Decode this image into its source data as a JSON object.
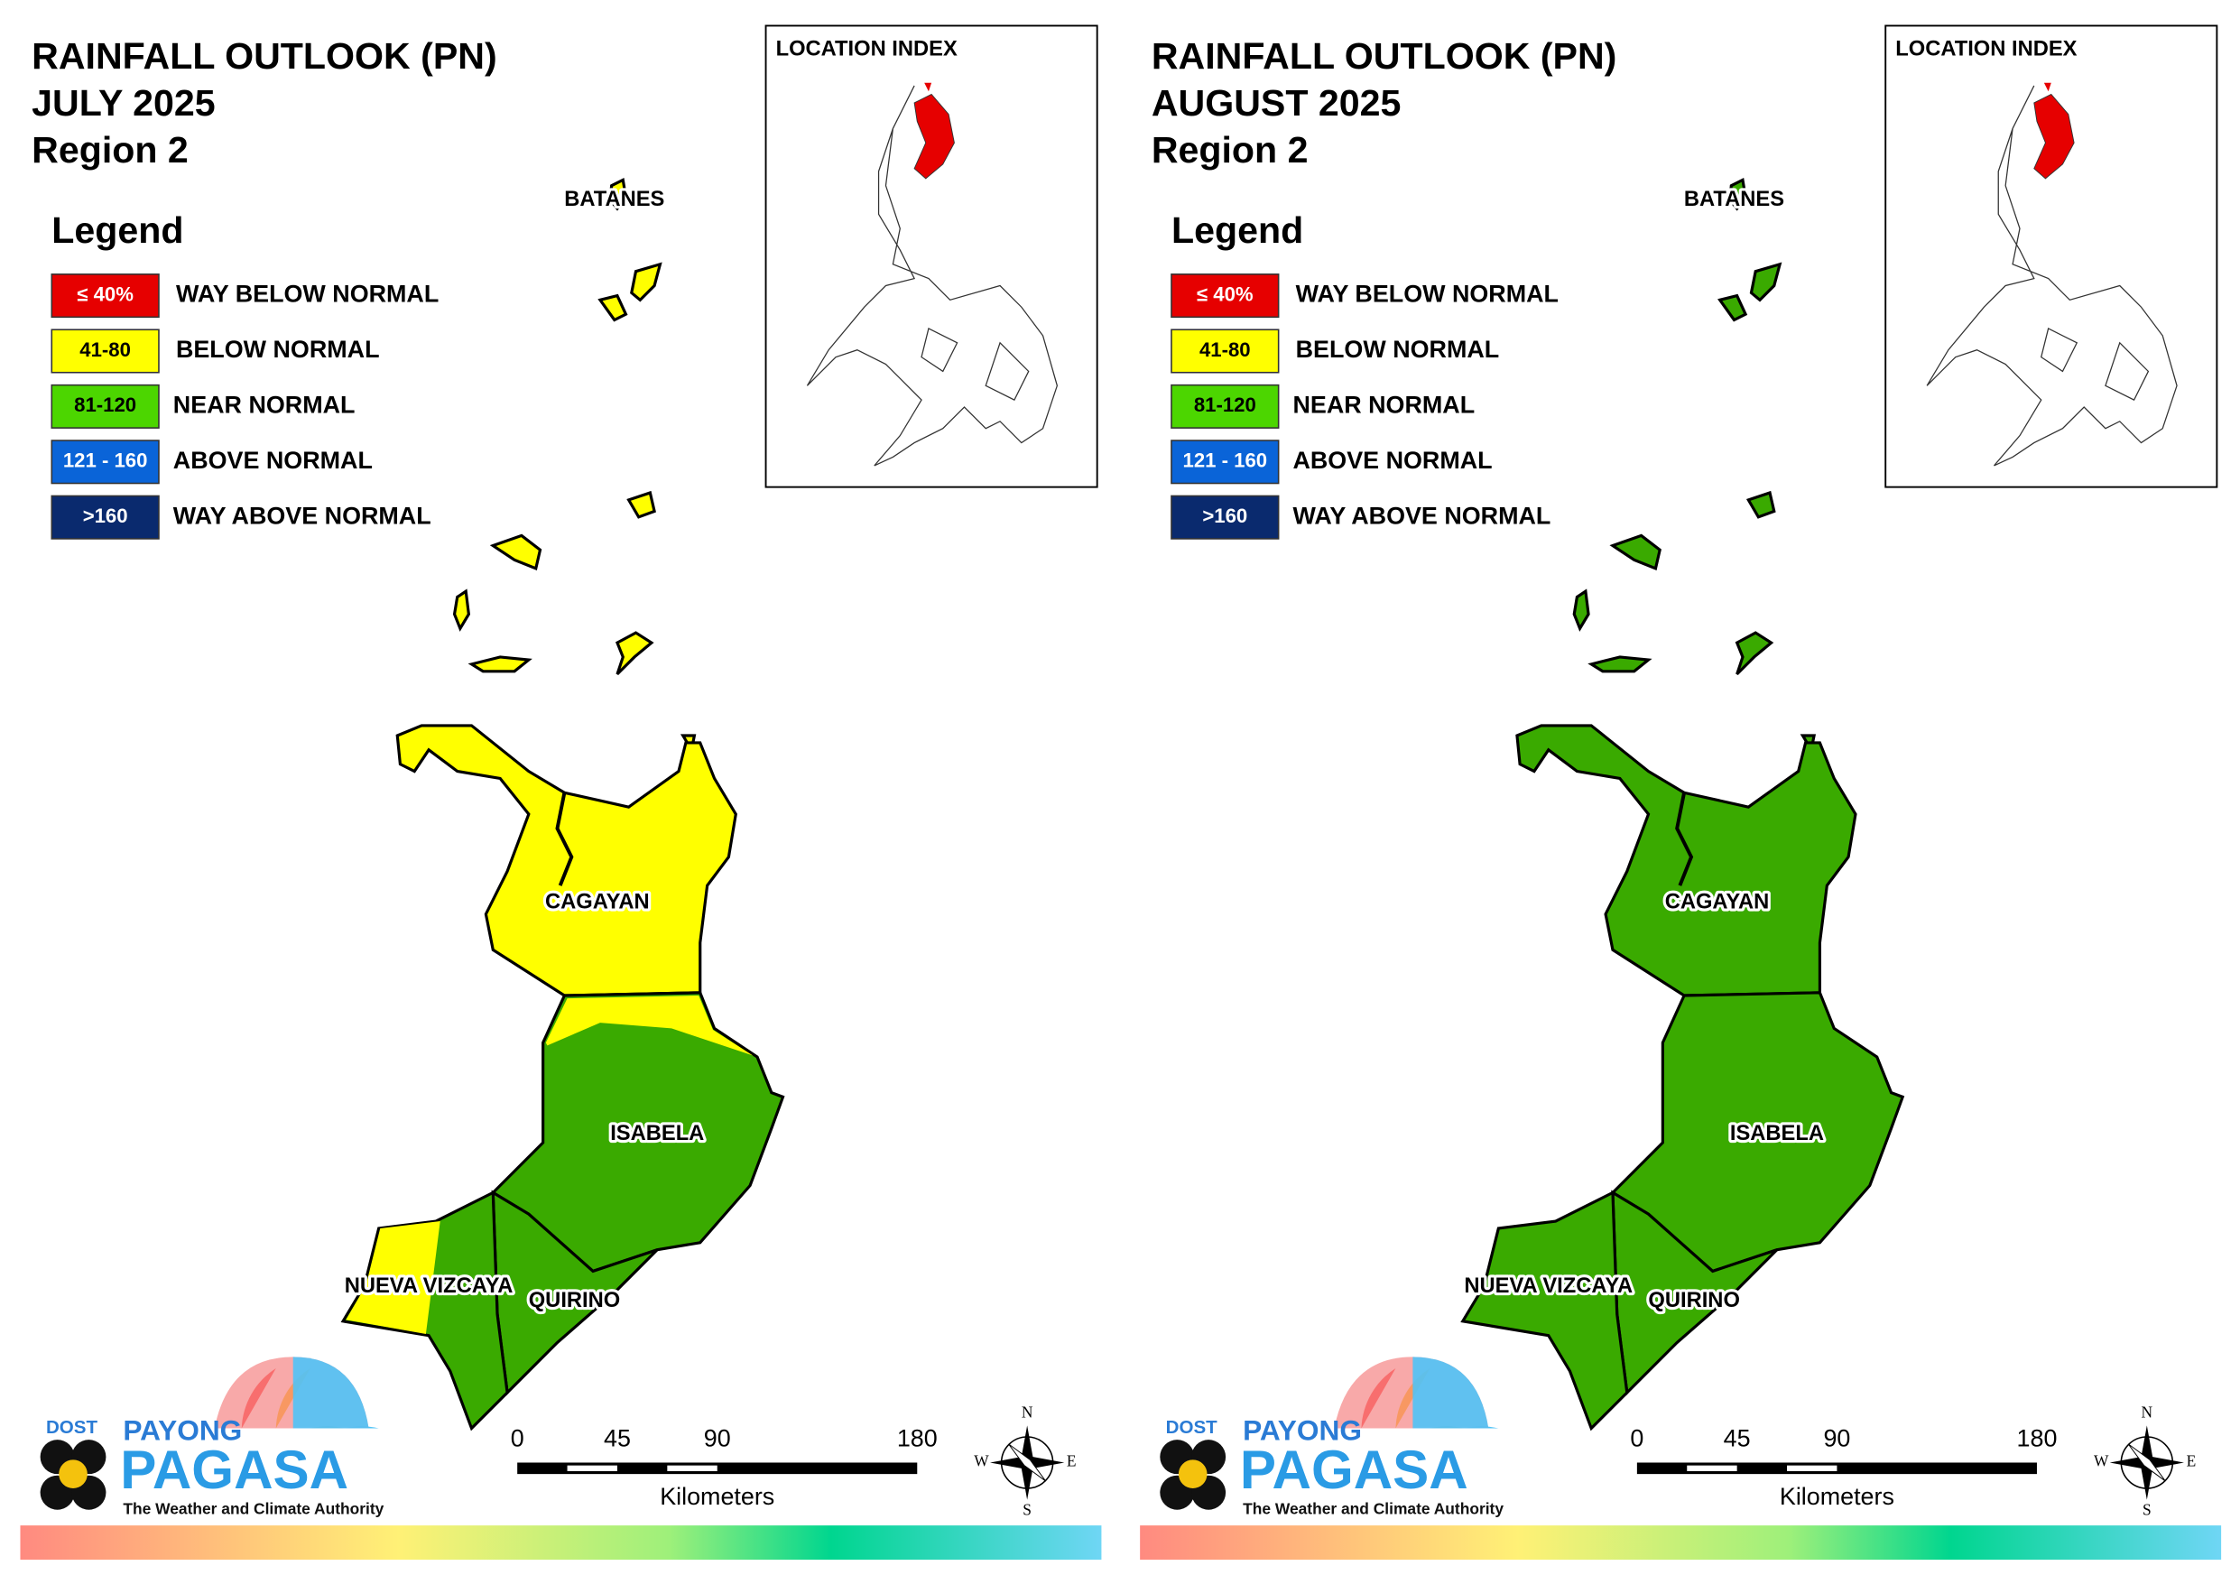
{
  "panels": [
    {
      "title": [
        "RAINFALL OUTLOOK (PN)",
        "JULY 2025",
        "Region 2"
      ],
      "legend": {
        "title": "Legend",
        "items": [
          {
            "swatch": "≤ 40%",
            "label": "WAY BELOW NORMAL"
          },
          {
            "swatch": "41-80",
            "label": "BELOW NORMAL"
          },
          {
            "swatch": "81-120",
            "label": "NEAR NORMAL"
          },
          {
            "swatch": "121 - 160",
            "label": "ABOVE NORMAL"
          },
          {
            "swatch": ">160",
            "label": "WAY ABOVE NORMAL"
          }
        ]
      },
      "location_index": "LOCATION INDEX",
      "provinces": [
        "BATANES",
        "CAGAYAN",
        "ISABELA",
        "NUEVA VIZCAYA",
        "QUIRINO"
      ],
      "scale_bar": {
        "ticks": [
          0,
          45,
          90,
          180
        ],
        "unit": "Kilometers"
      },
      "compass": [
        "N",
        "E",
        "S",
        "W"
      ],
      "logo": {
        "agency": "DOST",
        "brand_top": "PAYONG",
        "brand": "PAGASA",
        "tagline": "The Weather and Climate Authority"
      }
    },
    {
      "title": [
        "RAINFALL OUTLOOK (PN)",
        "AUGUST 2025",
        "Region 2"
      ],
      "legend": {
        "title": "Legend",
        "items": [
          {
            "swatch": "≤ 40%",
            "label": "WAY BELOW NORMAL"
          },
          {
            "swatch": "41-80",
            "label": "BELOW NORMAL"
          },
          {
            "swatch": "81-120",
            "label": "NEAR NORMAL"
          },
          {
            "swatch": "121 - 160",
            "label": "ABOVE NORMAL"
          },
          {
            "swatch": ">160",
            "label": "WAY ABOVE NORMAL"
          }
        ]
      },
      "location_index": "LOCATION INDEX",
      "provinces": [
        "BATANES",
        "CAGAYAN",
        "ISABELA",
        "NUEVA VIZCAYA",
        "QUIRINO"
      ],
      "scale_bar": {
        "ticks": [
          0,
          45,
          90,
          180
        ],
        "unit": "Kilometers"
      },
      "compass": [
        "N",
        "E",
        "S",
        "W"
      ],
      "logo": {
        "agency": "DOST",
        "brand_top": "PAYONG",
        "brand": "PAGASA",
        "tagline": "The Weather and Climate Authority"
      }
    }
  ]
}
